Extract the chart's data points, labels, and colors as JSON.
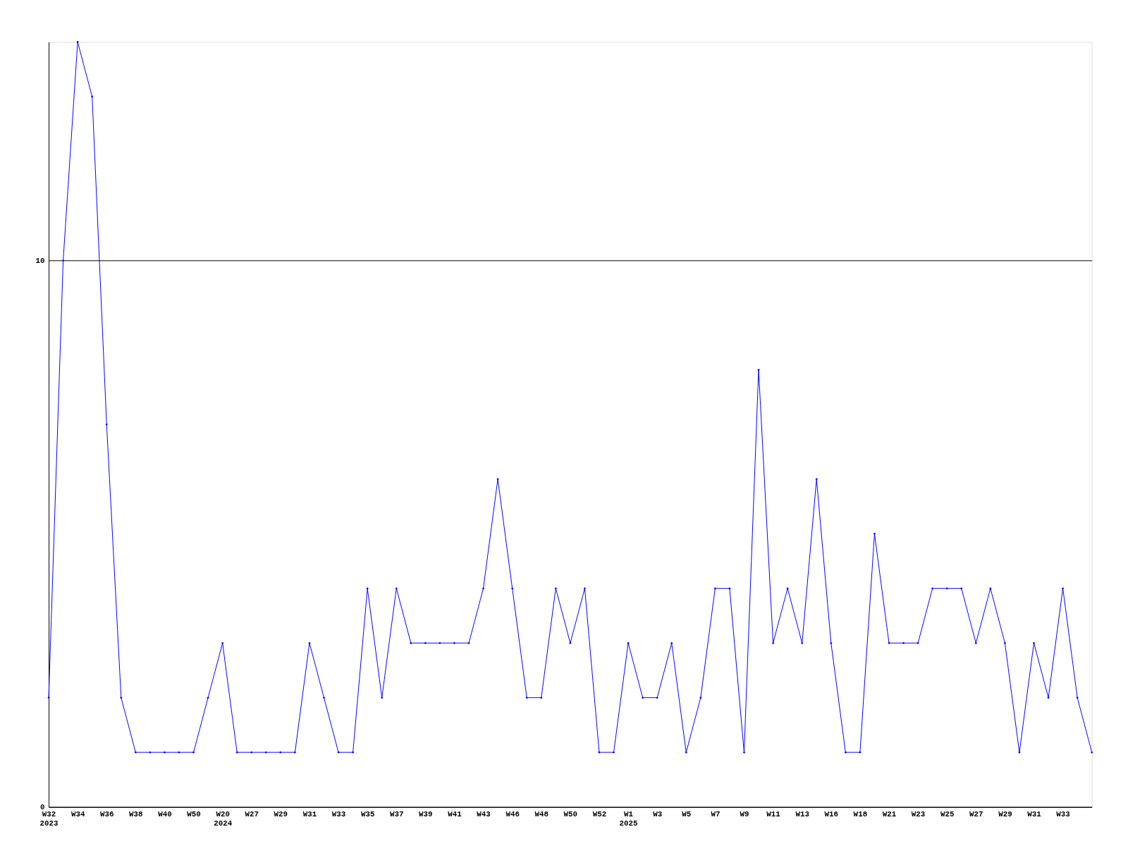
{
  "chart_data": {
    "type": "line",
    "categories": [
      "W32\n2023",
      null,
      "W34",
      null,
      "W36",
      null,
      "W38",
      null,
      "W40",
      null,
      "W50",
      null,
      "W20\n2024",
      null,
      "W27",
      null,
      "W29",
      null,
      "W31",
      null,
      "W33",
      null,
      "W35",
      null,
      "W37",
      null,
      "W39",
      null,
      "W41",
      null,
      "W43",
      null,
      "W46",
      null,
      "W48",
      null,
      "W50",
      null,
      "W52",
      null,
      "W1\n2025",
      null,
      "W3",
      null,
      "W5",
      null,
      "W7",
      null,
      "W9",
      null,
      "W11",
      null,
      "W13",
      null,
      "W16",
      null,
      "W18",
      null,
      "W21",
      null,
      "W23",
      null,
      "W25",
      null,
      "W27",
      null,
      "W29",
      null,
      "W31",
      null,
      "W33",
      null,
      null
    ],
    "series": [
      {
        "color": "#0000ff",
        "values": [
          2,
          10,
          14,
          13,
          7,
          2,
          1,
          1,
          1,
          1,
          1,
          2,
          3,
          1,
          1,
          1,
          1,
          1,
          3,
          2,
          1,
          1,
          4,
          2,
          4,
          3,
          3,
          3,
          3,
          3,
          4,
          6,
          4,
          2,
          2,
          4,
          3,
          4,
          1,
          1,
          3,
          2,
          2,
          3,
          1,
          2,
          4,
          4,
          1,
          8,
          3,
          4,
          3,
          6,
          3,
          1,
          1,
          5,
          3,
          3,
          3,
          4,
          4,
          4,
          3,
          4,
          3,
          1,
          3,
          2,
          4,
          2,
          1
        ]
      }
    ],
    "ylim": [
      0,
      14
    ],
    "yticks": [
      0,
      10
    ],
    "grid": "y",
    "marker": "diamond",
    "line_style": "solid"
  }
}
